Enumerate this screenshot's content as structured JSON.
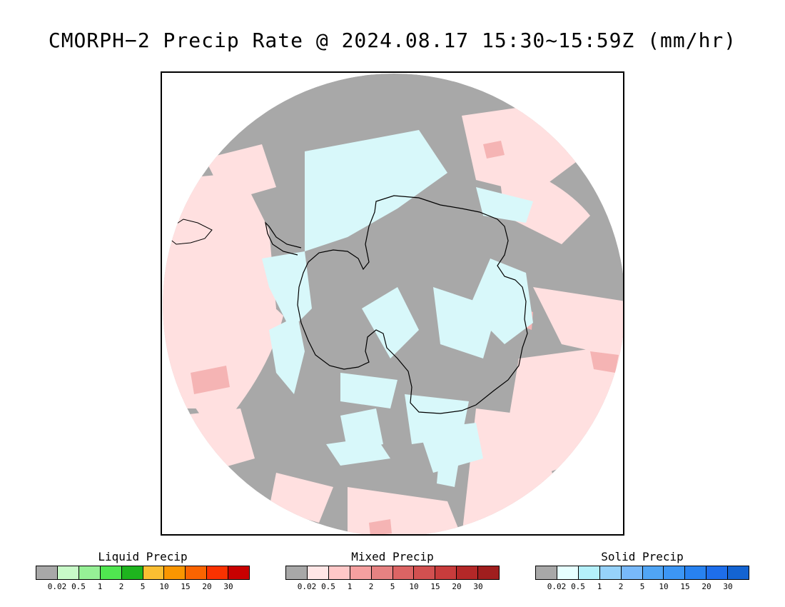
{
  "title": "CMORPH−2 Precip Rate @ 2024.08.17 15:30~15:59Z (mm/hr)",
  "map": {
    "projection": "south-polar-stereographic",
    "background_no_data": "#ffffff",
    "no_precip_color": "#a8a8a8",
    "coastline_color": "#000000"
  },
  "legends": [
    {
      "id": "liquid",
      "title": "Liquid Precip",
      "colors": [
        "#a8a8a8",
        "#c8fac8",
        "#96f096",
        "#50e650",
        "#1eb41e",
        "#fabe32",
        "#fa9600",
        "#fa6400",
        "#fa3200",
        "#c80000"
      ],
      "ticks": [
        "0.02",
        "0.5",
        "1",
        "2",
        "5",
        "10",
        "15",
        "20",
        "30"
      ]
    },
    {
      "id": "mixed",
      "title": "Mixed Precip",
      "colors": [
        "#a8a8a8",
        "#ffe6e6",
        "#ffc8c8",
        "#f5a0a0",
        "#e68282",
        "#dc6464",
        "#d25050",
        "#c83c3c",
        "#b42828",
        "#a01e1e"
      ],
      "ticks": [
        "0.02",
        "0.5",
        "1",
        "2",
        "5",
        "10",
        "15",
        "20",
        "30"
      ]
    },
    {
      "id": "solid",
      "title": "Solid Precip",
      "colors": [
        "#a8a8a8",
        "#e6ffff",
        "#b4f0fa",
        "#96d2fa",
        "#78b9fa",
        "#50a5f5",
        "#3c96f5",
        "#2882f0",
        "#1e6eeb",
        "#1464d2"
      ],
      "ticks": [
        "0.02",
        "0.5",
        "1",
        "2",
        "5",
        "10",
        "15",
        "20",
        "30"
      ]
    }
  ]
}
